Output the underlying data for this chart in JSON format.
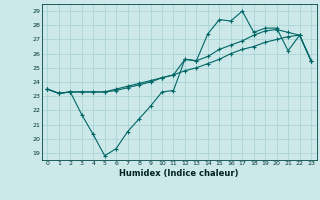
{
  "title": "",
  "xlabel": "Humidex (Indice chaleur)",
  "ylabel": "",
  "background_color": "#cce8e8",
  "grid_color": "#aad4d4",
  "line_color": "#006666",
  "xlim": [
    -0.5,
    23.5
  ],
  "ylim": [
    18.5,
    29.5
  ],
  "xticks": [
    0,
    1,
    2,
    3,
    4,
    5,
    6,
    7,
    8,
    9,
    10,
    11,
    12,
    13,
    14,
    15,
    16,
    17,
    18,
    19,
    20,
    21,
    22,
    23
  ],
  "yticks": [
    19,
    20,
    21,
    22,
    23,
    24,
    25,
    26,
    27,
    28,
    29
  ],
  "line1_x": [
    0,
    1,
    2,
    3,
    4,
    5,
    6,
    7,
    8,
    9,
    10,
    11,
    12,
    13,
    14,
    15,
    16,
    17,
    18,
    19,
    20,
    21,
    22,
    23
  ],
  "line1_y": [
    23.5,
    23.2,
    23.3,
    21.7,
    20.3,
    18.8,
    19.3,
    20.5,
    21.4,
    22.3,
    23.3,
    23.4,
    25.6,
    25.5,
    27.4,
    28.4,
    28.3,
    29.0,
    27.5,
    27.8,
    27.8,
    26.2,
    27.3,
    25.5
  ],
  "line2_x": [
    0,
    1,
    2,
    3,
    4,
    5,
    6,
    7,
    8,
    9,
    10,
    11,
    12,
    13,
    14,
    15,
    16,
    17,
    18,
    19,
    20,
    21,
    22,
    23
  ],
  "line2_y": [
    23.5,
    23.2,
    23.3,
    23.3,
    23.3,
    23.3,
    23.5,
    23.7,
    23.9,
    24.1,
    24.3,
    24.5,
    24.8,
    25.0,
    25.3,
    25.6,
    26.0,
    26.3,
    26.5,
    26.8,
    27.0,
    27.2,
    27.3,
    25.5
  ],
  "line3_x": [
    0,
    1,
    2,
    3,
    4,
    5,
    6,
    7,
    8,
    9,
    10,
    11,
    12,
    13,
    14,
    15,
    16,
    17,
    18,
    19,
    20,
    21,
    22,
    23
  ],
  "line3_y": [
    23.5,
    23.2,
    23.3,
    23.3,
    23.3,
    23.3,
    23.4,
    23.6,
    23.8,
    24.0,
    24.3,
    24.5,
    25.6,
    25.5,
    25.8,
    26.3,
    26.6,
    26.9,
    27.3,
    27.6,
    27.7,
    27.5,
    27.3,
    25.5
  ]
}
